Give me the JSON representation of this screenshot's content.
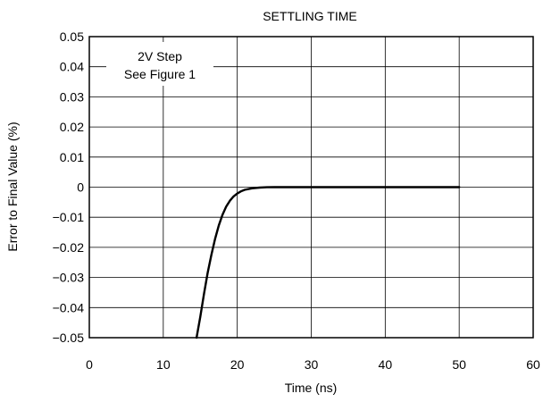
{
  "chart_data": {
    "type": "line",
    "title": "SETTLING TIME",
    "xlabel": "Time (ns)",
    "ylabel": "Error to Final Value (%)",
    "xlim": [
      0,
      60
    ],
    "ylim": [
      -0.05,
      0.05
    ],
    "x_ticks": [
      0,
      10,
      20,
      30,
      40,
      50,
      60
    ],
    "x_tick_labels": [
      "0",
      "10",
      "20",
      "30",
      "40",
      "50",
      "60"
    ],
    "y_ticks": [
      0.05,
      0.04,
      0.03,
      0.02,
      0.01,
      0,
      -0.01,
      -0.02,
      -0.03,
      -0.04,
      -0.05
    ],
    "y_tick_labels": [
      "0.05",
      "0.04",
      "0.03",
      "0.02",
      "0.01",
      "0",
      "−0.01",
      "−0.02",
      "−0.03",
      "−0.04",
      "−0.05"
    ],
    "grid": true,
    "annotation": [
      "2V Step",
      "See Figure 1"
    ],
    "series": [
      {
        "x": [
          14.5,
          15.0,
          15.5,
          16.0,
          16.5,
          17.0,
          17.5,
          18.0,
          18.5,
          19.0,
          19.5,
          20.0,
          20.5,
          21.0,
          22.0,
          23.0,
          24.0,
          25.0,
          30.0,
          40.0,
          50.0
        ],
        "y": [
          -0.05,
          -0.043,
          -0.0355,
          -0.0285,
          -0.0225,
          -0.0172,
          -0.0127,
          -0.0092,
          -0.0065,
          -0.0045,
          -0.0031,
          -0.0021,
          -0.0014,
          -0.0009,
          -0.0004,
          -0.00015,
          -3e-05,
          0,
          0,
          0,
          0
        ],
        "color": "#000000"
      }
    ]
  }
}
